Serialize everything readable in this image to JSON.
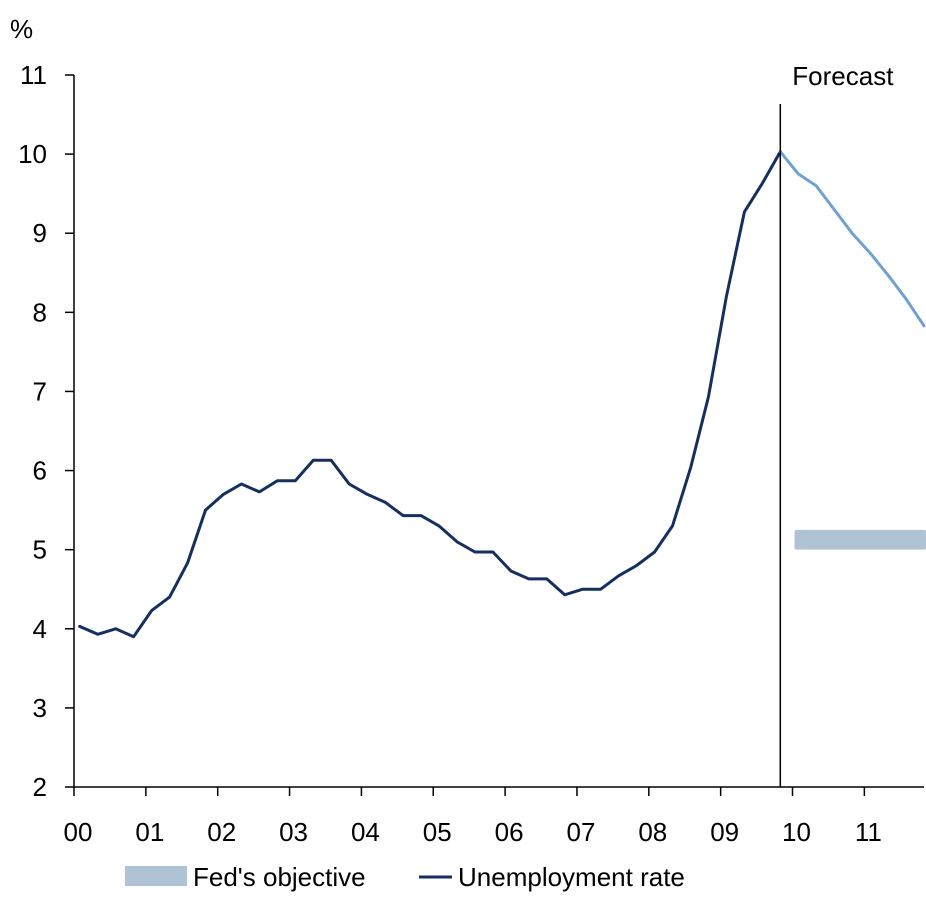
{
  "chart_data": {
    "type": "line",
    "unit_label": "%",
    "ylim": [
      2,
      11
    ],
    "y_ticks": [
      2,
      3,
      4,
      5,
      6,
      7,
      8,
      9,
      10,
      11
    ],
    "xlim": [
      2000,
      2011.83
    ],
    "x_ticks": [
      {
        "value": 2000,
        "label": "00"
      },
      {
        "value": 2001,
        "label": "01"
      },
      {
        "value": 2002,
        "label": "02"
      },
      {
        "value": 2003,
        "label": "03"
      },
      {
        "value": 2004,
        "label": "04"
      },
      {
        "value": 2005,
        "label": "05"
      },
      {
        "value": 2006,
        "label": "06"
      },
      {
        "value": 2007,
        "label": "07"
      },
      {
        "value": 2008,
        "label": "08"
      },
      {
        "value": 2009,
        "label": "09"
      },
      {
        "value": 2010,
        "label": "10"
      },
      {
        "value": 2011,
        "label": "11"
      }
    ],
    "forecast_marker": {
      "x": 2009.83,
      "label": "Forecast"
    },
    "grid": false,
    "legend_position": "bottom",
    "series": [
      {
        "name": "Unemployment rate",
        "color": "#15305f",
        "x": [
          2000.08,
          2000.33,
          2000.58,
          2000.83,
          2001.08,
          2001.33,
          2001.58,
          2001.83,
          2002.08,
          2002.33,
          2002.58,
          2002.83,
          2003.08,
          2003.33,
          2003.58,
          2003.83,
          2004.08,
          2004.33,
          2004.58,
          2004.83,
          2005.08,
          2005.33,
          2005.58,
          2005.83,
          2006.08,
          2006.33,
          2006.58,
          2006.83,
          2007.08,
          2007.33,
          2007.58,
          2007.83,
          2008.08,
          2008.33,
          2008.58,
          2008.83,
          2009.08,
          2009.33,
          2009.58,
          2009.83
        ],
        "y": [
          4.03,
          3.93,
          4.0,
          3.9,
          4.23,
          4.4,
          4.83,
          5.5,
          5.7,
          5.83,
          5.73,
          5.87,
          5.87,
          6.13,
          6.13,
          5.83,
          5.7,
          5.6,
          5.43,
          5.43,
          5.3,
          5.1,
          4.97,
          4.97,
          4.73,
          4.63,
          4.63,
          4.43,
          4.5,
          4.5,
          4.67,
          4.8,
          4.97,
          5.3,
          6.03,
          6.93,
          8.2,
          9.27,
          9.63,
          10.03
        ]
      },
      {
        "name": "",
        "color": "#6fa2d2",
        "x": [
          2009.83,
          2010.08,
          2010.33,
          2010.58,
          2010.83,
          2011.08,
          2011.33,
          2011.58,
          2011.83
        ],
        "y": [
          10.03,
          9.75,
          9.6,
          9.3,
          9.0,
          8.75,
          8.47,
          8.17,
          7.83
        ]
      }
    ],
    "bands": [
      {
        "name": "Fed's objective",
        "color": "#b0c3d4",
        "x_start": 2010.0,
        "x_end": 2011.83,
        "y_low": 5.0,
        "y_high": 5.25
      }
    ],
    "legend": [
      {
        "label": "Fed's objective",
        "kind": "band",
        "color": "#b0c3d4"
      },
      {
        "label": "Unemployment rate",
        "kind": "line",
        "color": "#15305f"
      }
    ]
  }
}
